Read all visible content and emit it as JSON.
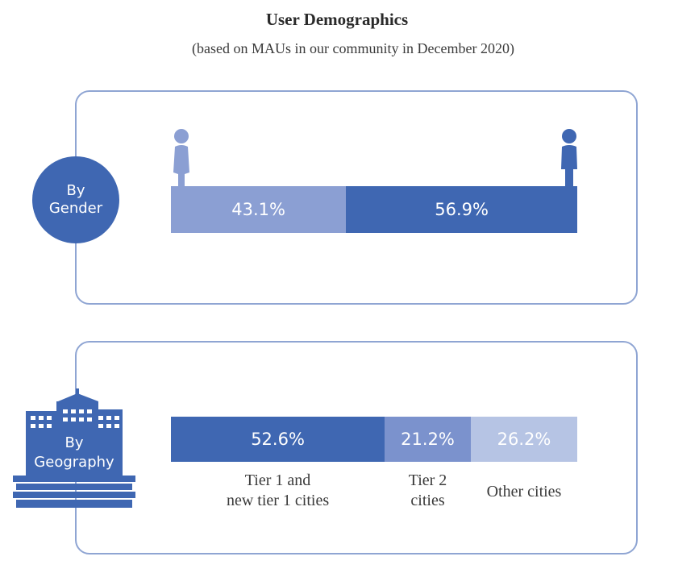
{
  "title": "User Demographics",
  "subtitle": "(based on MAUs in our community in December 2020)",
  "colors": {
    "dark_blue": "#3f67b2",
    "mid_blue": "#7b92cd",
    "light_blue": "#b6c4e4",
    "panel_border": "#8fa5d3"
  },
  "gender_badge": {
    "line1": "By",
    "line2": "Gender"
  },
  "geography_badge": {
    "line1": "By",
    "line2": "Geography"
  },
  "icons": [
    "female-person-icon",
    "male-person-icon",
    "building-icon"
  ],
  "chart_data": [
    {
      "type": "bar",
      "stacked": true,
      "categories": [
        "female",
        "male"
      ],
      "values": [
        43.1,
        56.9
      ],
      "labels": [
        "43.1%",
        "56.9%"
      ],
      "colors": [
        "#8b9fd3",
        "#3f67b2"
      ]
    },
    {
      "type": "bar",
      "stacked": true,
      "categories": [
        "Tier 1 and new tier 1 cities",
        "Tier 2 cities",
        "Other cities"
      ],
      "category_lines": [
        [
          "Tier 1 and",
          "new tier 1 cities"
        ],
        [
          "Tier 2",
          "cities"
        ],
        [
          "Other cities"
        ]
      ],
      "values": [
        52.6,
        21.2,
        26.2
      ],
      "labels": [
        "52.6%",
        "21.2%",
        "26.2%"
      ],
      "colors": [
        "#3f67b2",
        "#7b92cd",
        "#b6c4e4"
      ]
    }
  ]
}
